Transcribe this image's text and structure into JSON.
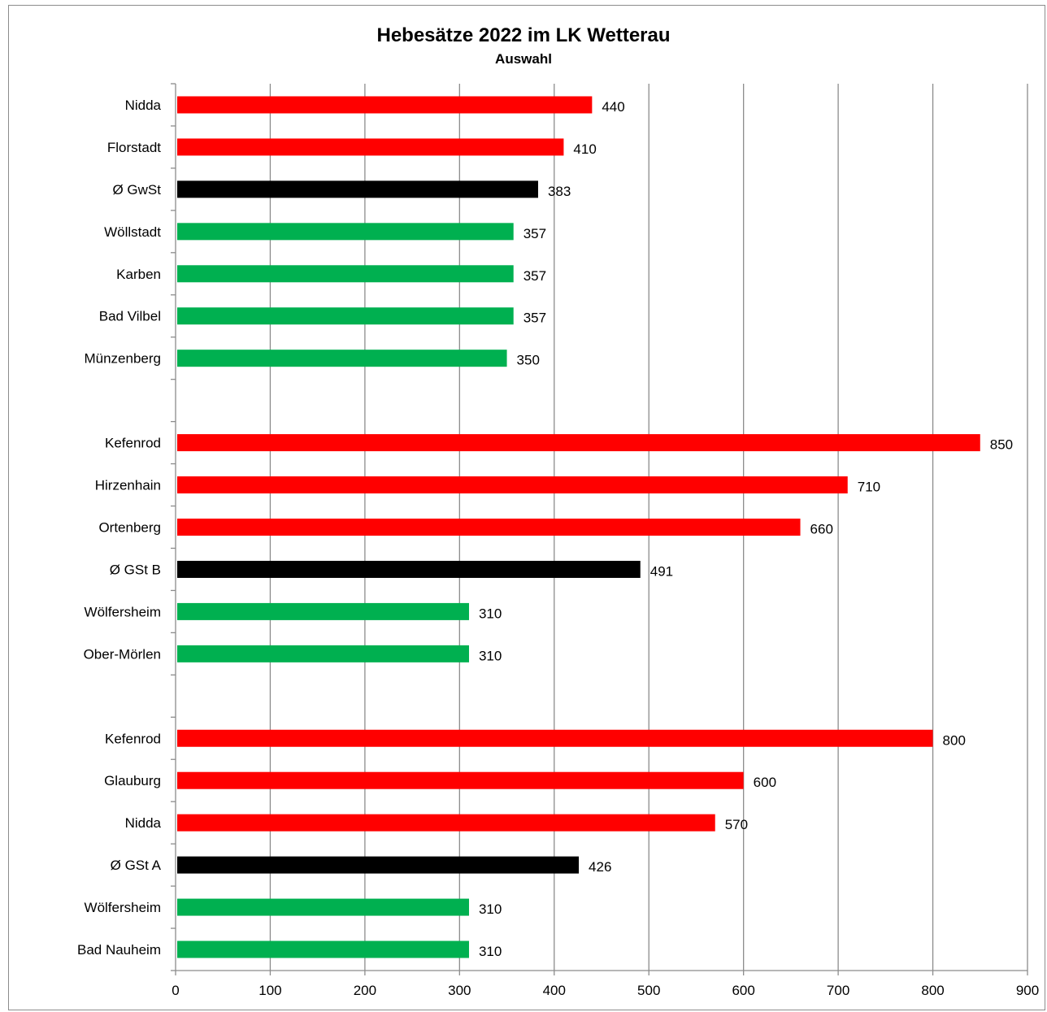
{
  "chart_data": {
    "type": "bar",
    "orientation": "horizontal",
    "title": "Hebesätze 2022 im LK Wetterau",
    "subtitle": "Auswahl",
    "xlabel": "",
    "ylabel": "",
    "xlim": [
      0,
      900
    ],
    "x_ticks": [
      0,
      100,
      200,
      300,
      400,
      500,
      600,
      700,
      800,
      900
    ],
    "grid": "vertical",
    "legend": "none",
    "colors": {
      "above_average": "#ff0000",
      "average": "#000000",
      "below_average": "#00b050"
    },
    "categories": [
      {
        "label": "Nidda",
        "value": 440,
        "color": "#ff0000"
      },
      {
        "label": "Florstadt",
        "value": 410,
        "color": "#ff0000"
      },
      {
        "label": "Ø GwSt",
        "value": 383,
        "color": "#000000"
      },
      {
        "label": "Wöllstadt",
        "value": 357,
        "color": "#00b050"
      },
      {
        "label": "Karben",
        "value": 357,
        "color": "#00b050"
      },
      {
        "label": "Bad Vilbel",
        "value": 357,
        "color": "#00b050"
      },
      {
        "label": "Münzenberg",
        "value": 350,
        "color": "#00b050"
      },
      {
        "label": "",
        "value": null,
        "color": ""
      },
      {
        "label": "Kefenrod",
        "value": 850,
        "color": "#ff0000"
      },
      {
        "label": "Hirzenhain",
        "value": 710,
        "color": "#ff0000"
      },
      {
        "label": "Ortenberg",
        "value": 660,
        "color": "#ff0000"
      },
      {
        "label": "Ø GSt B",
        "value": 491,
        "color": "#000000"
      },
      {
        "label": "Wölfersheim",
        "value": 310,
        "color": "#00b050"
      },
      {
        "label": "Ober-Mörlen",
        "value": 310,
        "color": "#00b050"
      },
      {
        "label": "",
        "value": null,
        "color": ""
      },
      {
        "label": "Kefenrod",
        "value": 800,
        "color": "#ff0000"
      },
      {
        "label": "Glauburg",
        "value": 600,
        "color": "#ff0000"
      },
      {
        "label": "Nidda",
        "value": 570,
        "color": "#ff0000"
      },
      {
        "label": "Ø GSt A",
        "value": 426,
        "color": "#000000"
      },
      {
        "label": "Wölfersheim",
        "value": 310,
        "color": "#00b050"
      },
      {
        "label": "Bad Nauheim",
        "value": 310,
        "color": "#00b050"
      }
    ]
  }
}
